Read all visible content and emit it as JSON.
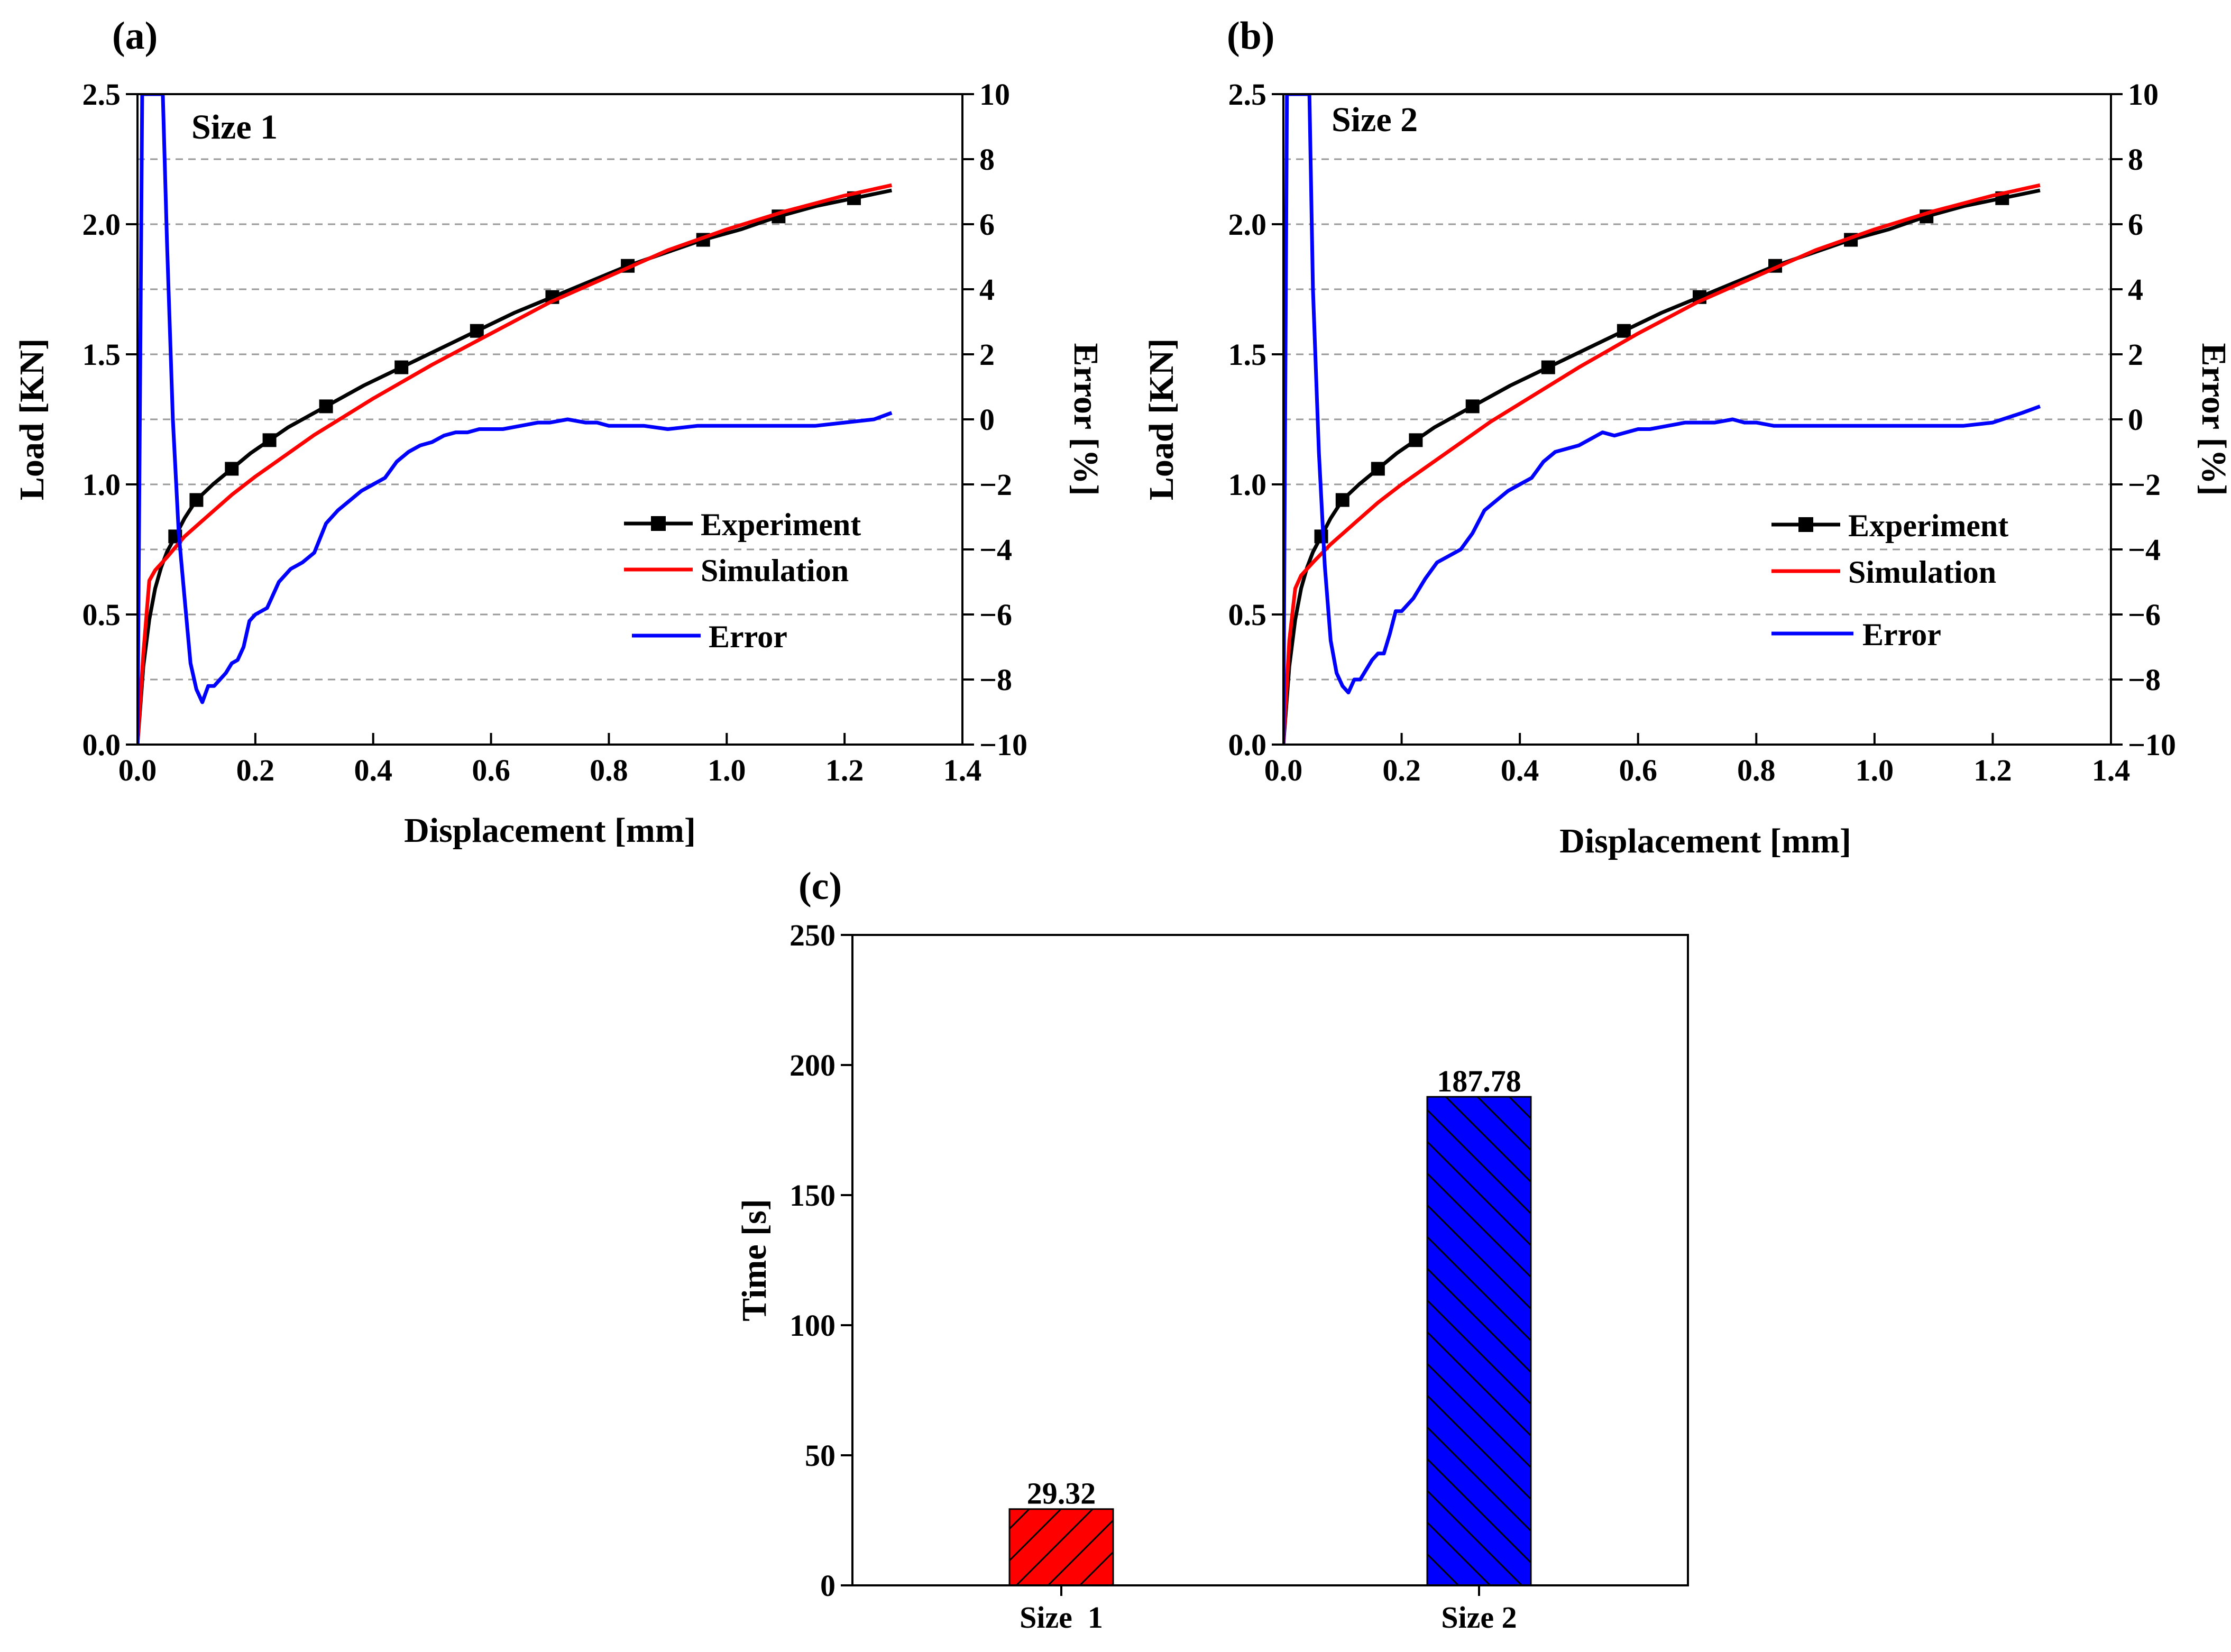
{
  "panels": {
    "a": {
      "label": "(a)"
    },
    "b": {
      "label": "(b)"
    },
    "c": {
      "label": "(c)"
    }
  },
  "chart_data": [
    {
      "id": "a",
      "type": "line",
      "annotation": "Size 1",
      "xlabel": "Displacement [mm]",
      "ylabel": "Load [KN]",
      "y2label": "Error [%]",
      "xlim": [
        0.0,
        1.4
      ],
      "ylim": [
        0.0,
        2.5
      ],
      "y2lim": [
        -10,
        10
      ],
      "xticks": [
        "0.0",
        "0.2",
        "0.4",
        "0.6",
        "0.8",
        "1.0",
        "1.2",
        "1.4"
      ],
      "yticks": [
        "0.0",
        "0.5",
        "1.0",
        "1.5",
        "2.0",
        "2.5"
      ],
      "y2ticks": [
        "-10",
        "-8",
        "-6",
        "-4",
        "-2",
        "0",
        "2",
        "4",
        "6",
        "8",
        "10"
      ],
      "grid": "dashed horizontal at error ticks",
      "legend": [
        "Experiment",
        "Simulation",
        "Error"
      ],
      "series": [
        {
          "name": "Experiment",
          "axis": "left",
          "color": "#000000",
          "marker": "square",
          "x": [
            0.0,
            0.005,
            0.01,
            0.02,
            0.03,
            0.04,
            0.05,
            0.064,
            0.08,
            0.1,
            0.128,
            0.16,
            0.192,
            0.224,
            0.256,
            0.32,
            0.384,
            0.448,
            0.512,
            0.576,
            0.64,
            0.704,
            0.768,
            0.832,
            0.896,
            0.96,
            1.024,
            1.088,
            1.152,
            1.216,
            1.28
          ],
          "y": [
            0.0,
            0.15,
            0.3,
            0.48,
            0.6,
            0.68,
            0.74,
            0.8,
            0.87,
            0.94,
            1.0,
            1.06,
            1.12,
            1.17,
            1.22,
            1.3,
            1.38,
            1.45,
            1.52,
            1.59,
            1.66,
            1.72,
            1.78,
            1.84,
            1.89,
            1.94,
            1.98,
            2.03,
            2.07,
            2.1,
            2.13
          ],
          "marker_every": 2
        },
        {
          "name": "Simulation",
          "axis": "left",
          "color": "#ff0000",
          "x": [
            0.0,
            0.01,
            0.02,
            0.03,
            0.05,
            0.08,
            0.12,
            0.16,
            0.2,
            0.25,
            0.3,
            0.35,
            0.4,
            0.5,
            0.6,
            0.7,
            0.8,
            0.9,
            1.0,
            1.1,
            1.2,
            1.28
          ],
          "y": [
            0.0,
            0.35,
            0.63,
            0.67,
            0.72,
            0.8,
            0.88,
            0.96,
            1.03,
            1.11,
            1.19,
            1.26,
            1.33,
            1.46,
            1.58,
            1.7,
            1.8,
            1.9,
            1.98,
            2.05,
            2.11,
            2.15
          ]
        },
        {
          "name": "Error",
          "axis": "right",
          "color": "#0000ff",
          "x": [
            0.0,
            0.008,
            0.012,
            0.02,
            0.03,
            0.043,
            0.05,
            0.06,
            0.07,
            0.08,
            0.09,
            0.1,
            0.11,
            0.12,
            0.13,
            0.14,
            0.15,
            0.16,
            0.17,
            0.18,
            0.19,
            0.2,
            0.22,
            0.24,
            0.26,
            0.28,
            0.3,
            0.32,
            0.34,
            0.36,
            0.38,
            0.4,
            0.42,
            0.44,
            0.46,
            0.48,
            0.5,
            0.52,
            0.54,
            0.56,
            0.58,
            0.6,
            0.62,
            0.65,
            0.68,
            0.7,
            0.73,
            0.76,
            0.78,
            0.8,
            0.83,
            0.86,
            0.9,
            0.95,
            1.0,
            1.05,
            1.1,
            1.15,
            1.2,
            1.25,
            1.28
          ],
          "y": [
            -10,
            10,
            10,
            10,
            10,
            10,
            5.5,
            0,
            -3.5,
            -5.5,
            -7.5,
            -8.3,
            -8.7,
            -8.2,
            -8.2,
            -8.0,
            -7.8,
            -7.5,
            -7.4,
            -7.0,
            -6.2,
            -6.0,
            -5.8,
            -5.0,
            -4.6,
            -4.4,
            -4.1,
            -3.2,
            -2.8,
            -2.5,
            -2.2,
            -2.0,
            -1.8,
            -1.3,
            -1.0,
            -0.8,
            -0.7,
            -0.5,
            -0.4,
            -0.4,
            -0.3,
            -0.3,
            -0.3,
            -0.2,
            -0.1,
            -0.1,
            0.0,
            -0.1,
            -0.1,
            -0.2,
            -0.2,
            -0.2,
            -0.3,
            -0.2,
            -0.2,
            -0.2,
            -0.2,
            -0.2,
            -0.1,
            0.0,
            0.2
          ]
        }
      ]
    },
    {
      "id": "b",
      "type": "line",
      "annotation": "Size 2",
      "xlabel": "Displacement [mm]",
      "ylabel": "Load [KN]",
      "y2label": "Error [%]",
      "xlim": [
        0.0,
        1.4
      ],
      "ylim": [
        0.0,
        2.5
      ],
      "y2lim": [
        -10,
        10
      ],
      "xticks": [
        "0.0",
        "0.2",
        "0.4",
        "0.6",
        "0.8",
        "1.0",
        "1.2",
        "1.4"
      ],
      "yticks": [
        "0.0",
        "0.5",
        "1.0",
        "1.5",
        "2.0",
        "2.5"
      ],
      "y2ticks": [
        "-10",
        "-8",
        "-6",
        "-4",
        "-2",
        "0",
        "2",
        "4",
        "6",
        "8",
        "10"
      ],
      "grid": "dashed horizontal at error ticks",
      "legend": [
        "Experiment",
        "Simulation",
        "Error"
      ],
      "series": [
        {
          "name": "Experiment",
          "axis": "left",
          "color": "#000000",
          "marker": "square",
          "x": [
            0.0,
            0.005,
            0.01,
            0.02,
            0.03,
            0.04,
            0.05,
            0.064,
            0.08,
            0.1,
            0.128,
            0.16,
            0.192,
            0.224,
            0.256,
            0.32,
            0.384,
            0.448,
            0.512,
            0.576,
            0.64,
            0.704,
            0.768,
            0.832,
            0.896,
            0.96,
            1.024,
            1.088,
            1.152,
            1.216,
            1.28
          ],
          "y": [
            0.0,
            0.15,
            0.3,
            0.48,
            0.6,
            0.68,
            0.74,
            0.8,
            0.87,
            0.94,
            1.0,
            1.06,
            1.12,
            1.17,
            1.22,
            1.3,
            1.38,
            1.45,
            1.52,
            1.59,
            1.66,
            1.72,
            1.78,
            1.84,
            1.89,
            1.94,
            1.98,
            2.03,
            2.07,
            2.1,
            2.13
          ],
          "marker_every": 2
        },
        {
          "name": "Simulation",
          "axis": "left",
          "color": "#ff0000",
          "x": [
            0.0,
            0.01,
            0.02,
            0.03,
            0.05,
            0.08,
            0.12,
            0.16,
            0.2,
            0.25,
            0.3,
            0.35,
            0.4,
            0.5,
            0.6,
            0.7,
            0.8,
            0.9,
            1.0,
            1.1,
            1.2,
            1.28
          ],
          "y": [
            0.0,
            0.4,
            0.6,
            0.65,
            0.7,
            0.77,
            0.85,
            0.93,
            1.0,
            1.08,
            1.16,
            1.24,
            1.31,
            1.45,
            1.58,
            1.7,
            1.8,
            1.9,
            1.98,
            2.05,
            2.11,
            2.15
          ]
        },
        {
          "name": "Error",
          "axis": "right",
          "color": "#0000ff",
          "x": [
            0.0,
            0.006,
            0.01,
            0.02,
            0.03,
            0.044,
            0.05,
            0.06,
            0.07,
            0.08,
            0.09,
            0.1,
            0.11,
            0.12,
            0.13,
            0.14,
            0.15,
            0.16,
            0.17,
            0.18,
            0.19,
            0.2,
            0.22,
            0.24,
            0.26,
            0.28,
            0.3,
            0.32,
            0.34,
            0.36,
            0.38,
            0.4,
            0.42,
            0.44,
            0.46,
            0.48,
            0.5,
            0.52,
            0.54,
            0.56,
            0.58,
            0.6,
            0.62,
            0.65,
            0.68,
            0.7,
            0.73,
            0.76,
            0.78,
            0.8,
            0.83,
            0.86,
            0.9,
            0.95,
            1.0,
            1.05,
            1.1,
            1.15,
            1.2,
            1.25,
            1.28
          ],
          "y": [
            -10,
            10,
            10,
            10,
            10,
            10,
            4.0,
            -1.0,
            -4.5,
            -6.8,
            -7.8,
            -8.2,
            -8.4,
            -8.0,
            -8.0,
            -7.7,
            -7.4,
            -7.2,
            -7.2,
            -6.6,
            -5.9,
            -5.9,
            -5.5,
            -4.9,
            -4.4,
            -4.2,
            -4.0,
            -3.5,
            -2.8,
            -2.5,
            -2.2,
            -2.0,
            -1.8,
            -1.3,
            -1.0,
            -0.9,
            -0.8,
            -0.6,
            -0.4,
            -0.5,
            -0.4,
            -0.3,
            -0.3,
            -0.2,
            -0.1,
            -0.1,
            -0.1,
            0.0,
            -0.1,
            -0.1,
            -0.2,
            -0.2,
            -0.2,
            -0.2,
            -0.2,
            -0.2,
            -0.2,
            -0.2,
            -0.1,
            0.2,
            0.4
          ]
        }
      ]
    },
    {
      "id": "c",
      "type": "bar",
      "title": "",
      "ylabel": "Time [s]",
      "xlabel": "",
      "ylim": [
        0,
        250
      ],
      "yticks": [
        "0",
        "50",
        "100",
        "150",
        "200",
        "250"
      ],
      "categories": [
        "Size  1",
        "Size 2"
      ],
      "values": [
        29.32,
        187.78
      ],
      "value_labels": [
        "29.32",
        "187.78"
      ],
      "colors": [
        "#ff0000",
        "#0000ff"
      ],
      "hatch": [
        "forward-diagonal",
        "backward-diagonal"
      ]
    }
  ]
}
